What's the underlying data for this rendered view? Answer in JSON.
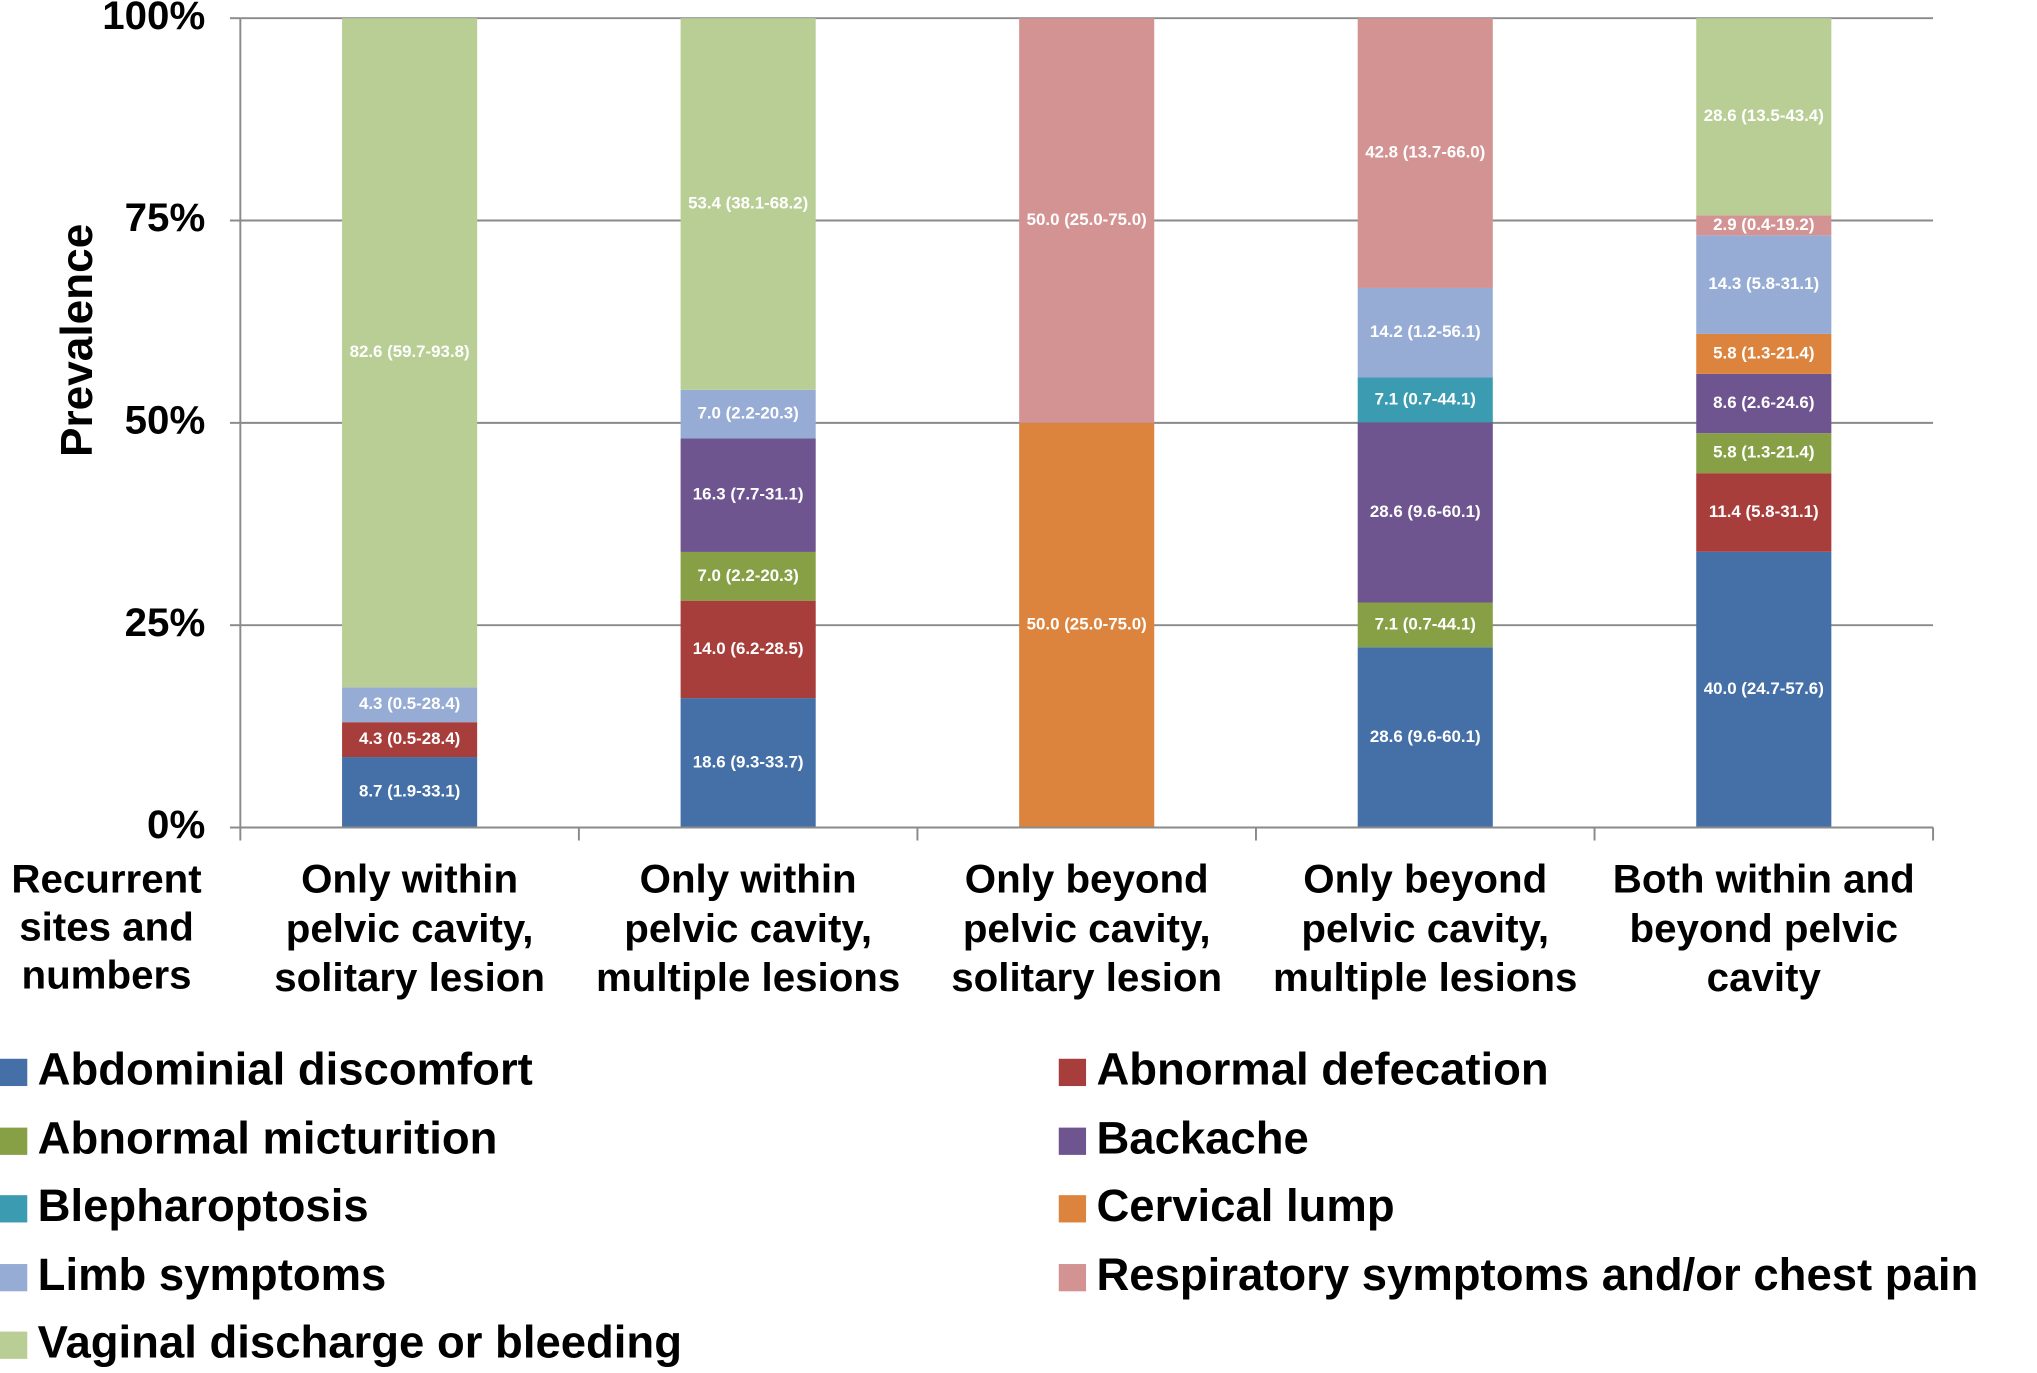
{
  "chart_data": {
    "type": "bar",
    "stacking": "percent",
    "axis_title": "Recurrent sites and numbers",
    "ylabel": "Prevalence",
    "categories": [
      "Only within pelvic cavity, solitary lesion",
      "Only within pelvic cavity, multiple lesions",
      "Only beyond pelvic cavity, solitary lesion",
      "Only beyond pelvic cavity, multiple lesions",
      "Both within and beyond pelvic cavity"
    ],
    "ylim": [
      0,
      100
    ],
    "yticks": [
      {
        "value": 0,
        "label": "0%"
      },
      {
        "value": 25,
        "label": "25%"
      },
      {
        "value": 50,
        "label": "50%"
      },
      {
        "value": 75,
        "label": "75%"
      },
      {
        "value": 100,
        "label": "100%"
      }
    ],
    "grid": true,
    "legend": "bottom",
    "series": [
      {
        "name": "Abdominial discomfort",
        "color": "#4470a7",
        "values": [
          8.7,
          18.6,
          null,
          28.6,
          40.0
        ],
        "value_labels": [
          "8.7 (1.9-33.1)",
          "18.6 (9.3-33.7)",
          null,
          "28.6 (9.6-60.1)",
          "40.0 (24.7-57.6)"
        ]
      },
      {
        "name": "Abnormal defecation",
        "color": "#a83e3b",
        "values": [
          4.3,
          14.0,
          null,
          null,
          11.4
        ],
        "value_labels": [
          "4.3 (0.5-28.4)",
          "14.0 (6.2-28.5)",
          null,
          null,
          "11.4 (5.8-31.1)"
        ]
      },
      {
        "name": "Abnormal micturition",
        "color": "#87a046",
        "values": [
          null,
          7.0,
          null,
          7.1,
          5.8
        ],
        "value_labels": [
          null,
          "7.0 (2.2-20.3)",
          null,
          "7.1 (0.7-44.1)",
          "5.8 (1.3-21.4)"
        ]
      },
      {
        "name": "Backache",
        "color": "#6f5590",
        "values": [
          null,
          16.3,
          null,
          28.6,
          8.6
        ],
        "value_labels": [
          null,
          "16.3 (7.7-31.1)",
          null,
          "28.6 (9.6-60.1)",
          "8.6 (2.6-24.6)"
        ]
      },
      {
        "name": "Blepharoptosis",
        "color": "#3b9cb1",
        "values": [
          null,
          null,
          null,
          7.1,
          null
        ],
        "value_labels": [
          null,
          null,
          null,
          "7.1 (0.7-44.1)",
          null
        ]
      },
      {
        "name": "Cervical lump",
        "color": "#dc843d",
        "values": [
          null,
          null,
          50.0,
          null,
          5.8
        ],
        "value_labels": [
          null,
          null,
          "50.0 (25.0-75.0)",
          null,
          "5.8 (1.3-21.4)"
        ]
      },
      {
        "name": "Limb symptoms",
        "color": "#97acd5",
        "values": [
          4.3,
          7.0,
          null,
          14.2,
          14.3
        ],
        "value_labels": [
          "4.3 (0.5-28.4)",
          "7.0 (2.2-20.3)",
          null,
          "14.2 (1.2-56.1)",
          "14.3 (5.8-31.1)"
        ]
      },
      {
        "name": "Respiratory symptoms and/or chest pain",
        "color": "#d49393",
        "values": [
          null,
          null,
          50.0,
          42.8,
          2.9
        ],
        "value_labels": [
          null,
          null,
          "50.0 (25.0-75.0)",
          "42.8 (13.7-66.0)",
          "2.9 (0.4-19.2)"
        ]
      },
      {
        "name": "Vaginal discharge or bleeding",
        "color": "#b9ce94",
        "values": [
          82.6,
          53.4,
          null,
          null,
          28.6
        ],
        "value_labels": [
          "82.6 (59.7-93.8)",
          "53.4 (38.1-68.2)",
          null,
          null,
          "28.6 (13.5-43.4)"
        ]
      }
    ]
  }
}
